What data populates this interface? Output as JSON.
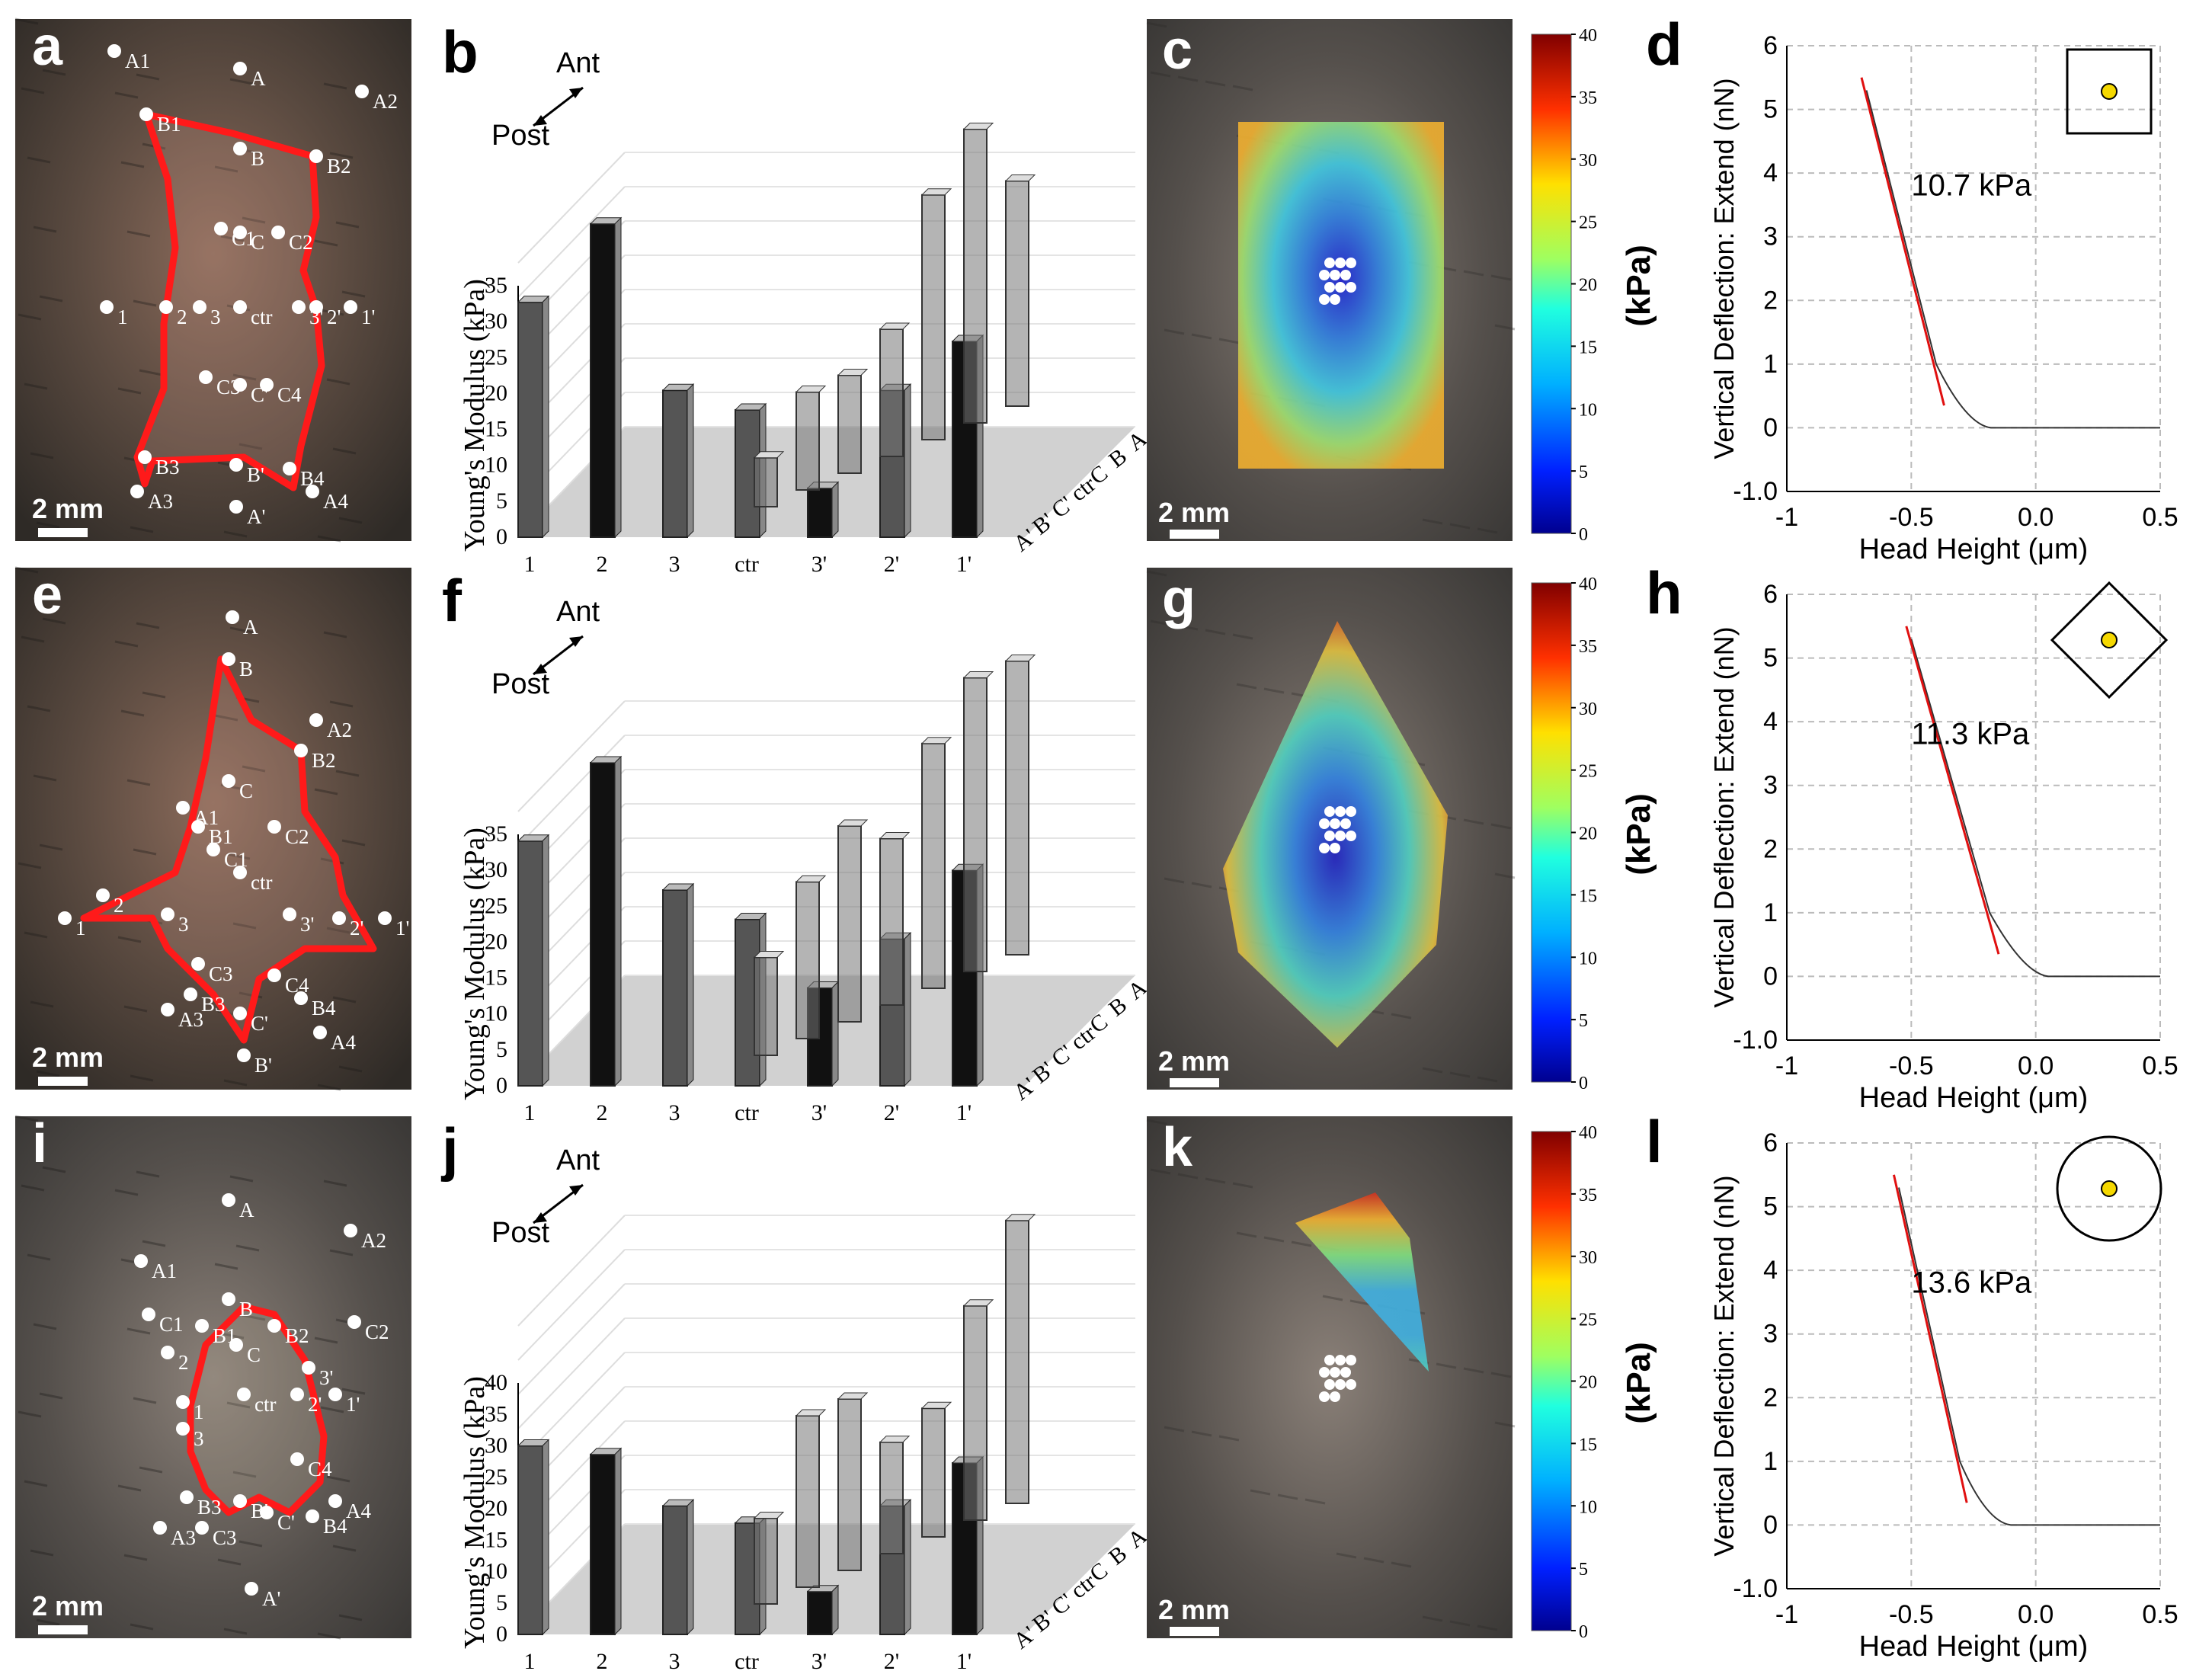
{
  "panels": [
    {
      "photo": {
        "letter": "a",
        "scale_bar": "2 mm",
        "points": [
          "A1",
          "A",
          "A2",
          "B1",
          "B",
          "B2",
          "C1",
          "C",
          "C2",
          "1",
          "2",
          "3",
          "ctr",
          "3'",
          "2'",
          "1'",
          "C3",
          "C'",
          "C4",
          "B3",
          "B'",
          "B4",
          "A3",
          "A'",
          "A4"
        ]
      },
      "bars": {
        "letter": "b",
        "ylabel": "Young's Modulus (kPa)",
        "ant": "Ant",
        "post": "Post",
        "yticks": [
          "0",
          "5",
          "10",
          "15",
          "20",
          "25",
          "30",
          "35"
        ],
        "x_axis": [
          "1",
          "2",
          "3",
          "ctr",
          "3'",
          "2'",
          "1'"
        ],
        "y_axis": [
          "A'",
          "B'",
          "C'",
          "ctr",
          "C",
          "B",
          "A"
        ]
      },
      "map": {
        "letter": "c",
        "scale_bar": "2 mm",
        "colorbar_ticks": [
          "40",
          "35",
          "30",
          "25",
          "20",
          "15",
          "10",
          "5",
          "0"
        ],
        "colorbar_label": "(kPa)"
      },
      "curve": {
        "letter": "d",
        "xlabel": "Head Height (μm)",
        "ylabel": "Vertical Deflection: Extend (nN)",
        "xticks": [
          "-1",
          "-0.5",
          "0.0",
          "0.5"
        ],
        "yticks": [
          "-1.0",
          "0",
          "1",
          "2",
          "3",
          "4",
          "5",
          "6"
        ],
        "annotation": "10.7 kPa",
        "inset": "square"
      }
    },
    {
      "photo": {
        "letter": "e",
        "scale_bar": "2 mm",
        "points": [
          "A",
          "B",
          "A2",
          "B2",
          "C",
          "A1",
          "B1",
          "C2",
          "C1",
          "ctr",
          "2",
          "1",
          "3",
          "3'",
          "2'",
          "1'",
          "C3",
          "C4",
          "B3",
          "B4",
          "A3",
          "C'",
          "A4",
          "B'",
          "A'"
        ]
      },
      "bars": {
        "letter": "f",
        "ylabel": "Young's Modulus (kPa)",
        "ant": "Ant",
        "post": "Post",
        "yticks": [
          "0",
          "5",
          "10",
          "15",
          "20",
          "25",
          "30",
          "35"
        ],
        "x_axis": [
          "1",
          "2",
          "3",
          "ctr",
          "3'",
          "2'",
          "1'"
        ],
        "y_axis": [
          "A'",
          "B'",
          "C'",
          "ctr",
          "C",
          "B",
          "A"
        ]
      },
      "map": {
        "letter": "g",
        "scale_bar": "2 mm",
        "colorbar_ticks": [
          "40",
          "35",
          "30",
          "25",
          "20",
          "15",
          "10",
          "5",
          "0"
        ],
        "colorbar_label": "(kPa)"
      },
      "curve": {
        "letter": "h",
        "xlabel": "Head Height (μm)",
        "ylabel": "Vertical Deflection: Extend (nN)",
        "xticks": [
          "-1",
          "-0.5",
          "0.0",
          "0.5"
        ],
        "yticks": [
          "-1.0",
          "0",
          "1",
          "2",
          "3",
          "4",
          "5",
          "6"
        ],
        "annotation": "11.3 kPa",
        "inset": "diamond"
      }
    },
    {
      "photo": {
        "letter": "i",
        "scale_bar": "2 mm",
        "points": [
          "A",
          "A2",
          "A1",
          "B",
          "C1",
          "B1",
          "B2",
          "C2",
          "2",
          "C",
          "3'",
          "1",
          "ctr",
          "2'",
          "1'",
          "3",
          "C4",
          "B3",
          "B'",
          "C'",
          "B4",
          "A4",
          "A3",
          "C3",
          "A'"
        ]
      },
      "bars": {
        "letter": "j",
        "ylabel": "Young's Modulus (kPa)",
        "ant": "Ant",
        "post": "Post",
        "yticks": [
          "0",
          "5",
          "10",
          "15",
          "20",
          "25",
          "30",
          "35",
          "40"
        ],
        "x_axis": [
          "1",
          "2",
          "3",
          "ctr",
          "3'",
          "2'",
          "1'"
        ],
        "y_axis": [
          "A'",
          "B'",
          "C'",
          "ctr",
          "C",
          "B",
          "A"
        ]
      },
      "map": {
        "letter": "k",
        "scale_bar": "2 mm",
        "colorbar_ticks": [
          "40",
          "35",
          "30",
          "25",
          "20",
          "15",
          "10",
          "5",
          "0"
        ],
        "colorbar_label": "(kPa)"
      },
      "curve": {
        "letter": "l",
        "xlabel": "Head Height (μm)",
        "ylabel": "Vertical Deflection: Extend (nN)",
        "xticks": [
          "-1",
          "-0.5",
          "0.0",
          "0.5"
        ],
        "yticks": [
          "-1.0",
          "0",
          "1",
          "2",
          "3",
          "4",
          "5",
          "6"
        ],
        "annotation": "13.6 kPa",
        "inset": "circle"
      }
    }
  ],
  "chart_data": [
    {
      "type": "bar",
      "title": "b",
      "ylabel": "Young's Modulus (kPa)",
      "ylim": [
        0,
        35
      ],
      "categories": [
        "1",
        "2",
        "3",
        "ctr",
        "3'",
        "2'",
        "1'"
      ],
      "series": [
        {
          "name": "horizontal row (ctr)",
          "values": [
            24,
            32,
            15,
            13,
            5,
            15,
            20
          ]
        },
        {
          "name": "ctr column (A' to A)",
          "categories": [
            "A'",
            "B'",
            "C'",
            "ctr",
            "C",
            "B",
            "A"
          ],
          "values": [
            5,
            10,
            10,
            13,
            25,
            30,
            23
          ]
        }
      ]
    },
    {
      "type": "bar",
      "title": "f",
      "ylabel": "Young's Modulus (kPa)",
      "ylim": [
        0,
        35
      ],
      "categories": [
        "1",
        "2",
        "3",
        "ctr",
        "3'",
        "2'",
        "1'"
      ],
      "series": [
        {
          "name": "horizontal row (ctr)",
          "values": [
            25,
            33,
            20,
            17,
            10,
            15,
            22
          ]
        },
        {
          "name": "ctr column (A' to A)",
          "categories": [
            "A'",
            "B'",
            "C'",
            "ctr",
            "C",
            "B",
            "A"
          ],
          "values": [
            10,
            16,
            20,
            17,
            25,
            30,
            30
          ]
        }
      ]
    },
    {
      "type": "bar",
      "title": "j",
      "ylabel": "Young's Modulus (kPa)",
      "ylim": [
        0,
        40
      ],
      "categories": [
        "1",
        "2",
        "3",
        "ctr",
        "3'",
        "2'",
        "1'"
      ],
      "series": [
        {
          "name": "horizontal row (ctr)",
          "values": [
            22,
            21,
            15,
            13,
            5,
            15,
            20
          ]
        },
        {
          "name": "ctr column (A' to A)",
          "categories": [
            "A'",
            "B'",
            "C'",
            "ctr",
            "C",
            "B",
            "A"
          ],
          "values": [
            10,
            20,
            20,
            13,
            15,
            25,
            33
          ]
        }
      ]
    }
  ]
}
